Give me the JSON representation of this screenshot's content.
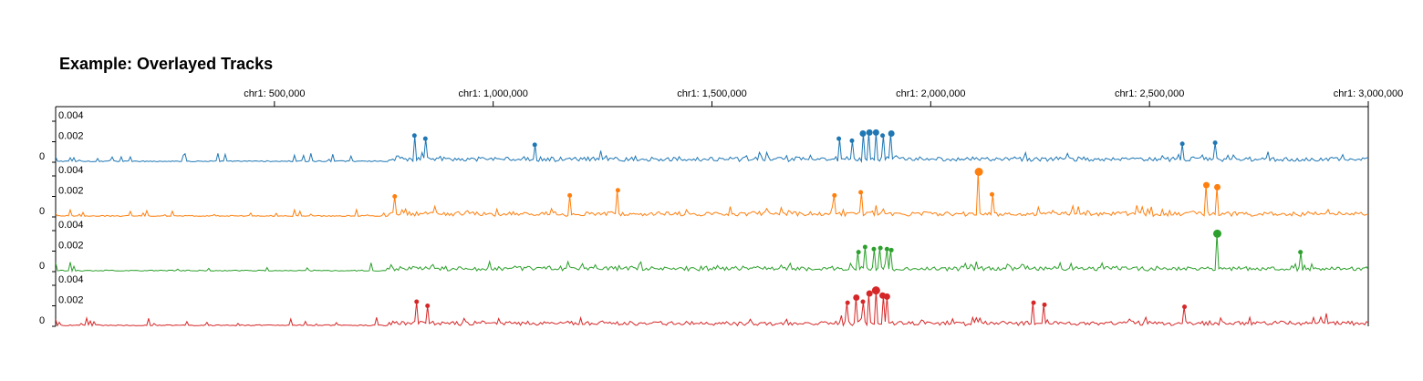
{
  "title": "Example: Overlayed Tracks",
  "chart_data": {
    "type": "area",
    "title": "Example: Overlayed Tracks",
    "x_unit": "bp",
    "chromosome": "chr1",
    "xlim": [
      1,
      3000000
    ],
    "x_ticks": [
      500000,
      1000000,
      1500000,
      2000000,
      2500000,
      3000000
    ],
    "x_tick_labels": [
      "chr1: 500,000",
      "chr1: 1,000,000",
      "chr1: 1,500,000",
      "chr1: 2,000,000",
      "chr1: 2,500,000",
      "chr1: 3,000,000"
    ],
    "ylim": [
      0,
      0.0045
    ],
    "y_ticks": [
      0,
      0.002,
      0.004
    ],
    "y_tick_labels": [
      "0",
      "0.002",
      "0.004"
    ],
    "legend": "none",
    "series": [
      {
        "color": "#1f77b4",
        "peaks": [
          {
            "x": 820000,
            "y": 0.0026
          },
          {
            "x": 845000,
            "y": 0.0023
          },
          {
            "x": 1095000,
            "y": 0.0017
          },
          {
            "x": 1790000,
            "y": 0.0023
          },
          {
            "x": 1820000,
            "y": 0.0021
          },
          {
            "x": 1845000,
            "y": 0.0028
          },
          {
            "x": 1860000,
            "y": 0.0029
          },
          {
            "x": 1875000,
            "y": 0.0029
          },
          {
            "x": 1890000,
            "y": 0.0026
          },
          {
            "x": 1910000,
            "y": 0.0028
          },
          {
            "x": 2575000,
            "y": 0.0018
          },
          {
            "x": 2650000,
            "y": 0.0019
          }
        ]
      },
      {
        "color": "#ff7f0e",
        "peaks": [
          {
            "x": 775000,
            "y": 0.002
          },
          {
            "x": 1175000,
            "y": 0.0021
          },
          {
            "x": 1285000,
            "y": 0.0026
          },
          {
            "x": 1780000,
            "y": 0.0021
          },
          {
            "x": 1840000,
            "y": 0.0024
          },
          {
            "x": 2110000,
            "y": 0.0044
          },
          {
            "x": 2140000,
            "y": 0.0022
          },
          {
            "x": 2630000,
            "y": 0.0031
          },
          {
            "x": 2655000,
            "y": 0.0029
          }
        ]
      },
      {
        "color": "#2ca02c",
        "peaks": [
          {
            "x": 1835000,
            "y": 0.0019
          },
          {
            "x": 1850000,
            "y": 0.0024
          },
          {
            "x": 1870000,
            "y": 0.0022
          },
          {
            "x": 1885000,
            "y": 0.0023
          },
          {
            "x": 1900000,
            "y": 0.0022
          },
          {
            "x": 1910000,
            "y": 0.0021
          },
          {
            "x": 2655000,
            "y": 0.0037
          },
          {
            "x": 2845000,
            "y": 0.0019
          }
        ]
      },
      {
        "color": "#d62728",
        "peaks": [
          {
            "x": 825000,
            "y": 0.0024
          },
          {
            "x": 850000,
            "y": 0.002
          },
          {
            "x": 1810000,
            "y": 0.0023
          },
          {
            "x": 1830000,
            "y": 0.0028
          },
          {
            "x": 1845000,
            "y": 0.0024
          },
          {
            "x": 1860000,
            "y": 0.0032
          },
          {
            "x": 1875000,
            "y": 0.0035
          },
          {
            "x": 1890000,
            "y": 0.003
          },
          {
            "x": 1900000,
            "y": 0.0029
          },
          {
            "x": 2235000,
            "y": 0.0023
          },
          {
            "x": 2260000,
            "y": 0.0021
          },
          {
            "x": 2580000,
            "y": 0.0019
          }
        ]
      }
    ]
  }
}
